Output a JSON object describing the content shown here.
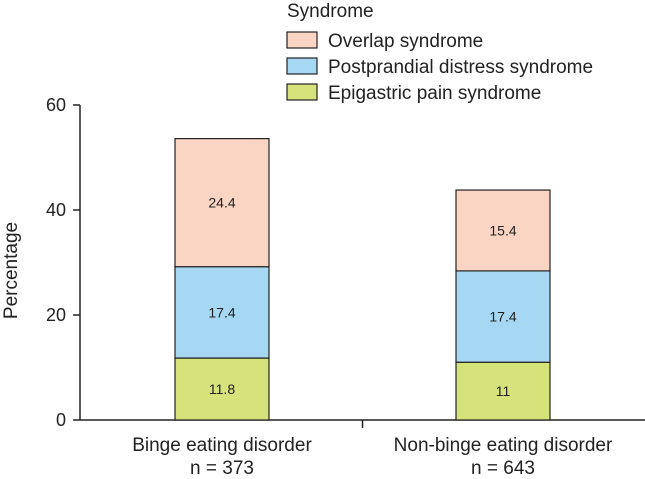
{
  "chart_data": {
    "type": "bar",
    "stacked": true,
    "ylabel": "Percentage",
    "ylim": [
      0,
      60
    ],
    "yticks": [
      0,
      20,
      40,
      60
    ],
    "categories": [
      {
        "label": "Binge eating disorder",
        "sublabel": "n = 373"
      },
      {
        "label": "Non-binge eating disorder",
        "sublabel": "n = 643"
      }
    ],
    "series": [
      {
        "name": "Epigastric pain syndrome",
        "color": "#d6e27a",
        "values": [
          11.8,
          11
        ],
        "labels": [
          "11.8",
          "11"
        ]
      },
      {
        "name": "Postprandial distress syndrome",
        "color": "#a6d8f4",
        "values": [
          17.4,
          17.4
        ],
        "labels": [
          "17.4",
          "17.4"
        ]
      },
      {
        "name": "Overlap syndrome",
        "color": "#fbd5c3",
        "values": [
          24.4,
          15.4
        ],
        "labels": [
          "24.4",
          "15.4"
        ]
      }
    ],
    "legend": {
      "title": "Syndrome",
      "order": [
        "Overlap syndrome",
        "Postprandial distress syndrome",
        "Epigastric pain syndrome"
      ],
      "position": "top-right"
    }
  }
}
